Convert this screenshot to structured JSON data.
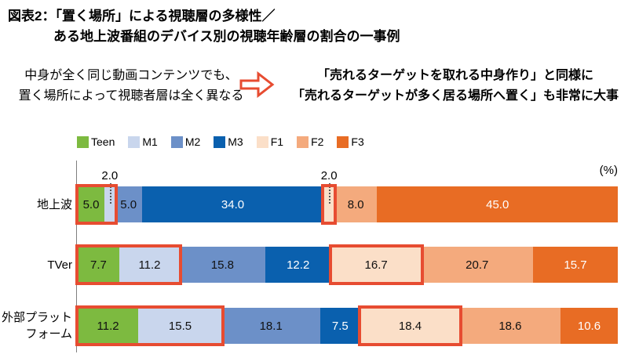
{
  "title": {
    "line1": "図表2：「置く場所」による視聴層の多様性／",
    "line2": "ある地上波番組のデバイス別の視聴年齢層の割合の一事例"
  },
  "intro": {
    "left_line1": "中身が全く同じ動画コンテンツでも、",
    "left_line2": "置く場所によって視聴者層は全く異なる",
    "arrow_icon": "block-right-arrow",
    "arrow_color": "#E74C31",
    "right_line1": "「売れるターゲットを取れる中身作り」と同様に",
    "right_line2": "「売れるターゲットが多く居る場所へ置く」も非常に大事"
  },
  "chart_data": {
    "type": "bar",
    "orientation": "horizontal",
    "stacked": true,
    "unit_label": "(%)",
    "legend_position": "top",
    "legend": [
      "Teen",
      "M1",
      "M2",
      "M3",
      "F1",
      "F2",
      "F3"
    ],
    "categories": [
      "地上波",
      "TVer",
      "外部プラットフォーム"
    ],
    "category_display_lines": [
      [
        "地上波"
      ],
      [
        "TVer"
      ],
      [
        "外部プラット",
        "フォーム"
      ]
    ],
    "series": [
      {
        "name": "Teen",
        "color": "#7DBA40",
        "text_color": "#111111",
        "values": [
          5.0,
          7.7,
          11.2
        ]
      },
      {
        "name": "M1",
        "color": "#C9D6ED",
        "text_color": "#111111",
        "values": [
          2.0,
          11.2,
          15.5
        ]
      },
      {
        "name": "M2",
        "color": "#6C90C8",
        "text_color": "#111111",
        "values": [
          5.0,
          15.8,
          18.1
        ]
      },
      {
        "name": "M3",
        "color": "#0A60AE",
        "text_color": "#FFFFFF",
        "values": [
          34.0,
          12.2,
          7.5
        ]
      },
      {
        "name": "F1",
        "color": "#FBDFC8",
        "text_color": "#111111",
        "values": [
          2.0,
          16.7,
          18.4
        ]
      },
      {
        "name": "F2",
        "color": "#F4AA7D",
        "text_color": "#111111",
        "values": [
          8.0,
          20.7,
          18.6
        ]
      },
      {
        "name": "F3",
        "color": "#E86C24",
        "text_color": "#FFFFFF",
        "values": [
          45.0,
          15.7,
          10.6
        ]
      }
    ],
    "highlight_color": "#E74C31",
    "highlights": [
      {
        "row": 0,
        "from": 0,
        "to": 1
      },
      {
        "row": 0,
        "from": 4,
        "to": 4
      },
      {
        "row": 1,
        "from": 0,
        "to": 1
      },
      {
        "row": 1,
        "from": 4,
        "to": 4
      },
      {
        "row": 2,
        "from": 0,
        "to": 1
      },
      {
        "row": 2,
        "from": 4,
        "to": 4
      }
    ],
    "callouts": [
      {
        "row": 0,
        "series": 1,
        "text": "2.0"
      },
      {
        "row": 0,
        "series": 4,
        "text": "2.0"
      }
    ]
  }
}
